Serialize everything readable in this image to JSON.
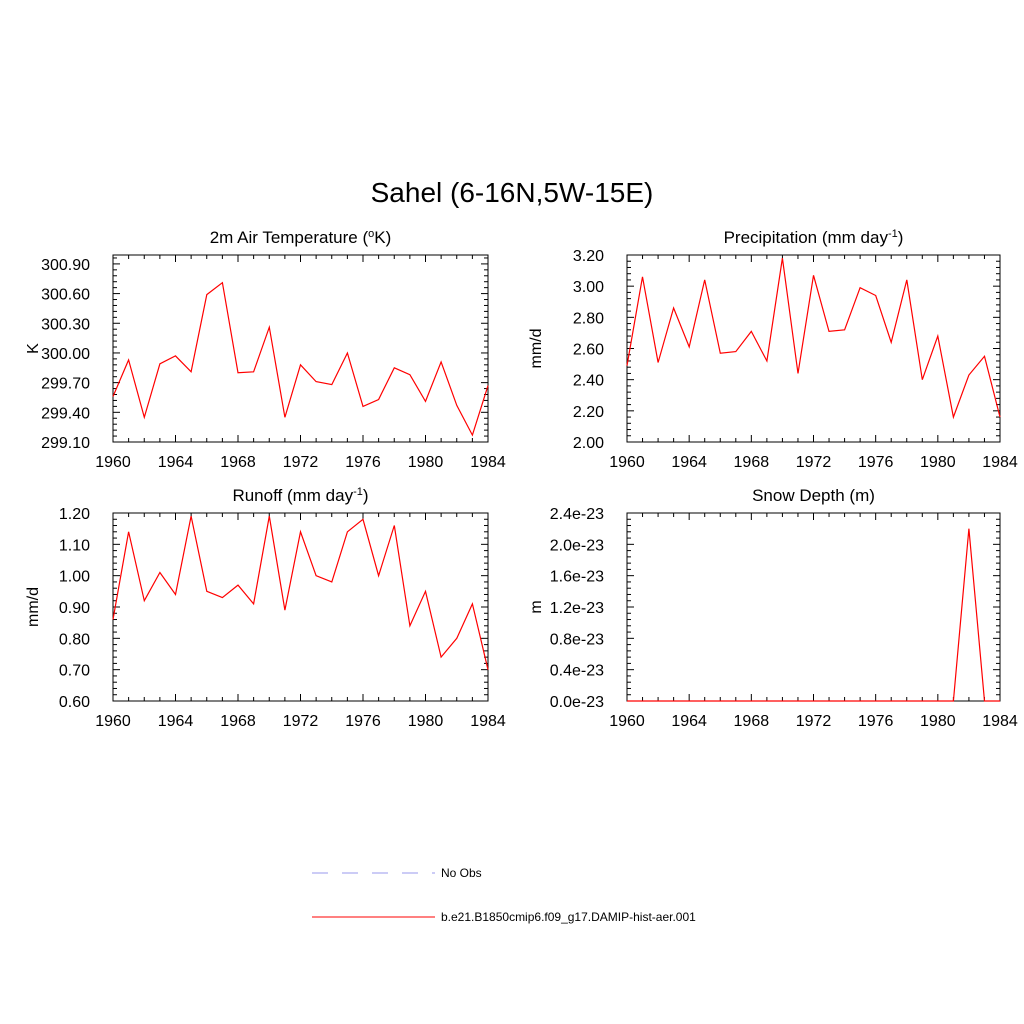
{
  "figure": {
    "title": "Sahel (6-16N,5W-15E)"
  },
  "legend": {
    "entries": [
      {
        "label": "No Obs",
        "style": "dashed",
        "color": "#9999ee"
      },
      {
        "label": "b.e21.B1850cmip6.f09_g17.DAMIP-hist-aer.001",
        "style": "solid",
        "color": "#ff0000"
      }
    ]
  },
  "chart_data": [
    {
      "type": "line",
      "id": "t2m",
      "title": "2m Air Temperature (",
      "title_sup": "o",
      "title_tail": "K)",
      "xlabel": "",
      "ylabel": "K",
      "xlim": [
        1960,
        1984
      ],
      "ylim": [
        299.1,
        300.99
      ],
      "x_ticks": [
        1960,
        1964,
        1968,
        1972,
        1976,
        1980,
        1984
      ],
      "y_ticks": [
        299.1,
        299.4,
        299.7,
        300.0,
        300.3,
        300.6,
        300.9
      ],
      "y_tick_labels": [
        "299.10",
        "299.40",
        "299.70",
        "300.00",
        "300.30",
        "300.60",
        "300.90"
      ],
      "series": [
        {
          "color": "#ff0000",
          "x": [
            1960,
            1961,
            1962,
            1963,
            1964,
            1965,
            1966,
            1967,
            1968,
            1969,
            1970,
            1971,
            1972,
            1973,
            1974,
            1975,
            1976,
            1977,
            1978,
            1979,
            1980,
            1981,
            1982,
            1983,
            1984
          ],
          "y": [
            299.56,
            299.93,
            299.35,
            299.89,
            299.97,
            299.81,
            300.59,
            300.71,
            299.8,
            299.81,
            300.26,
            299.35,
            299.88,
            299.71,
            299.68,
            300.0,
            299.46,
            299.53,
            299.85,
            299.78,
            299.51,
            299.91,
            299.47,
            299.17,
            299.67
          ]
        }
      ]
    },
    {
      "type": "line",
      "id": "precip",
      "title": "Precipitation (mm day",
      "title_sup": "-1",
      "title_tail": ")",
      "xlabel": "",
      "ylabel": "mm/d",
      "xlim": [
        1960,
        1984
      ],
      "ylim": [
        2.0,
        3.2
      ],
      "x_ticks": [
        1960,
        1964,
        1968,
        1972,
        1976,
        1980,
        1984
      ],
      "y_ticks": [
        2.0,
        2.2,
        2.4,
        2.6,
        2.8,
        3.0,
        3.2
      ],
      "y_tick_labels": [
        "2.00",
        "2.20",
        "2.40",
        "2.60",
        "2.80",
        "3.00",
        "3.20"
      ],
      "series": [
        {
          "color": "#ff0000",
          "x": [
            1960,
            1961,
            1962,
            1963,
            1964,
            1965,
            1966,
            1967,
            1968,
            1969,
            1970,
            1971,
            1972,
            1973,
            1974,
            1975,
            1976,
            1977,
            1978,
            1979,
            1980,
            1981,
            1982,
            1983,
            1984
          ],
          "y": [
            2.49,
            3.06,
            2.51,
            2.86,
            2.61,
            3.04,
            2.57,
            2.58,
            2.71,
            2.52,
            3.18,
            2.44,
            3.07,
            2.71,
            2.72,
            2.99,
            2.94,
            2.64,
            3.04,
            2.4,
            2.68,
            2.16,
            2.43,
            2.55,
            2.16
          ]
        }
      ]
    },
    {
      "type": "line",
      "id": "runoff",
      "title": "Runoff (mm day",
      "title_sup": "-1",
      "title_tail": ")",
      "xlabel": "",
      "ylabel": "mm/d",
      "xlim": [
        1960,
        1984
      ],
      "ylim": [
        0.6,
        1.2
      ],
      "x_ticks": [
        1960,
        1964,
        1968,
        1972,
        1976,
        1980,
        1984
      ],
      "y_ticks": [
        0.6,
        0.7,
        0.8,
        0.9,
        1.0,
        1.1,
        1.2
      ],
      "y_tick_labels": [
        "0.60",
        "0.70",
        "0.80",
        "0.90",
        "1.00",
        "1.10",
        "1.20"
      ],
      "series": [
        {
          "color": "#ff0000",
          "x": [
            1960,
            1961,
            1962,
            1963,
            1964,
            1965,
            1966,
            1967,
            1968,
            1969,
            1970,
            1971,
            1972,
            1973,
            1974,
            1975,
            1976,
            1977,
            1978,
            1979,
            1980,
            1981,
            1982,
            1983,
            1984
          ],
          "y": [
            0.86,
            1.14,
            0.92,
            1.01,
            0.94,
            1.19,
            0.95,
            0.93,
            0.97,
            0.91,
            1.19,
            0.89,
            1.14,
            1.0,
            0.98,
            1.14,
            1.18,
            1.0,
            1.16,
            0.84,
            0.95,
            0.74,
            0.8,
            0.91,
            0.7
          ]
        }
      ]
    },
    {
      "type": "line",
      "id": "snow",
      "title": "Snow Depth (m)",
      "title_sup": "",
      "title_tail": "",
      "xlabel": "",
      "ylabel": "m",
      "xlim": [
        1960,
        1984
      ],
      "ylim": [
        0,
        2.4e-23
      ],
      "x_ticks": [
        1960,
        1964,
        1968,
        1972,
        1976,
        1980,
        1984
      ],
      "y_ticks": [
        0,
        4e-24,
        8e-24,
        1.2e-23,
        1.6e-23,
        2e-23,
        2.4e-23
      ],
      "y_tick_labels": [
        "0.0e-23",
        "0.4e-23",
        "0.8e-23",
        "1.2e-23",
        "1.6e-23",
        "2.0e-23",
        "2.4e-23"
      ],
      "series": [
        {
          "color": "#ff0000",
          "x": [
            1960,
            1961,
            1962,
            1963,
            1964,
            1965,
            1966,
            1967,
            1968,
            1969,
            1970,
            1971,
            1972,
            1973,
            1974,
            1975,
            1976,
            1977,
            1978,
            1979,
            1980,
            1981,
            1982,
            1983,
            1984
          ],
          "y": [
            0,
            0,
            0,
            0,
            0,
            0,
            0,
            0,
            0,
            0,
            0,
            0,
            0,
            0,
            0,
            0,
            0,
            0,
            0,
            0,
            0,
            0,
            2.2e-23,
            0,
            0
          ]
        }
      ]
    }
  ]
}
